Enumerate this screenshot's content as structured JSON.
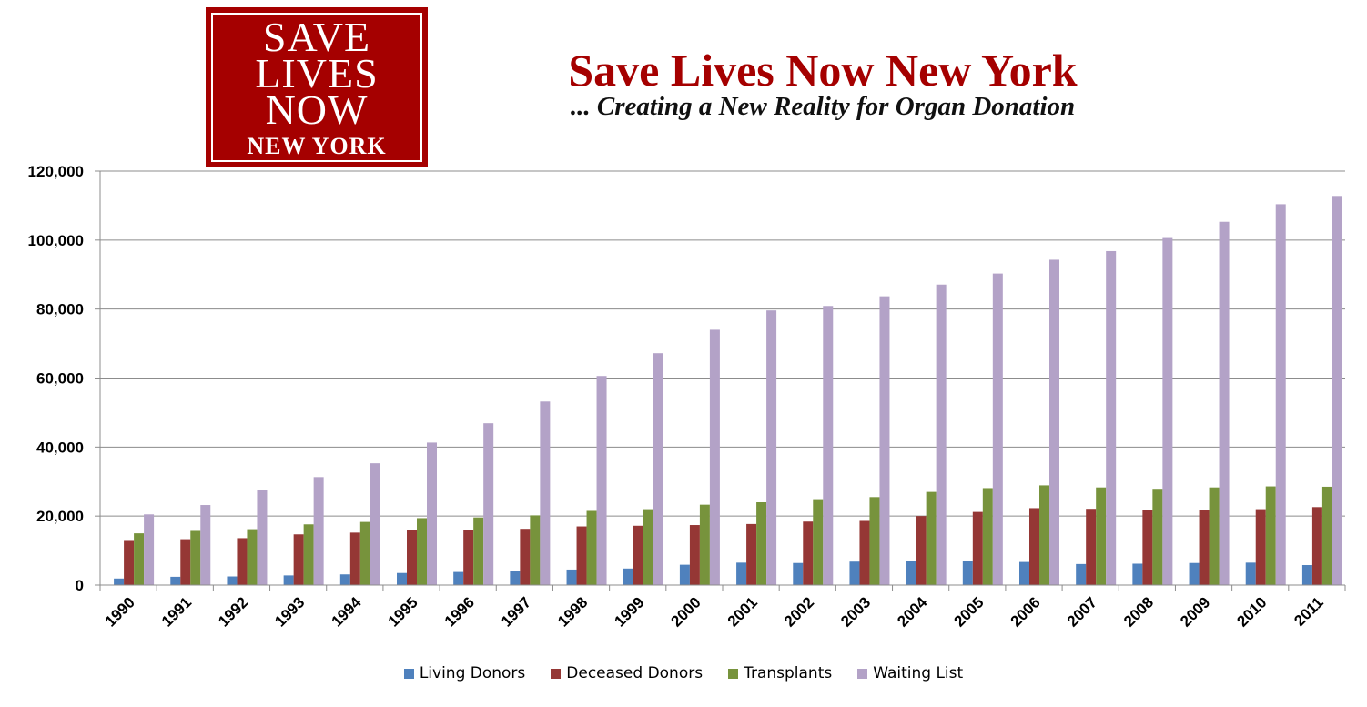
{
  "logo": {
    "lines": [
      "SAVE",
      "LIVES",
      "NOW",
      "NEW YORK"
    ],
    "bg_color": "#a50000"
  },
  "header": {
    "title": "Save Lives Now New York",
    "subtitle": "... Creating a New Reality for Organ Donation"
  },
  "chart_data": {
    "type": "bar",
    "categories": [
      "1990",
      "1991",
      "1992",
      "1993",
      "1994",
      "1995",
      "1996",
      "1997",
      "1998",
      "1999",
      "2000",
      "2001",
      "2002",
      "2003",
      "2004",
      "2005",
      "2006",
      "2007",
      "2008",
      "2009",
      "2010",
      "2011"
    ],
    "series": [
      {
        "name": "Living Donors",
        "color": "#4f81bd",
        "values": [
          1900,
          2400,
          2500,
          2800,
          3100,
          3500,
          3800,
          4100,
          4500,
          4800,
          5900,
          6500,
          6400,
          6800,
          7000,
          6900,
          6700,
          6100,
          6200,
          6400,
          6500,
          5800
        ]
      },
      {
        "name": "Deceased Donors",
        "color": "#953735",
        "values": [
          12800,
          13300,
          13600,
          14700,
          15200,
          15900,
          15900,
          16300,
          17000,
          17200,
          17400,
          17700,
          18400,
          18600,
          20000,
          21200,
          22300,
          22100,
          21700,
          21800,
          22000,
          22600
        ]
      },
      {
        "name": "Transplants",
        "color": "#77933c",
        "values": [
          15000,
          15700,
          16200,
          17600,
          18300,
          19400,
          19600,
          20200,
          21500,
          22000,
          23300,
          24000,
          24900,
          25500,
          27000,
          28100,
          28900,
          28300,
          27900,
          28300,
          28600,
          28500
        ]
      },
      {
        "name": "Waiting List",
        "color": "#b3a2c7",
        "values": [
          20500,
          23200,
          27600,
          31300,
          35300,
          41300,
          46900,
          53200,
          60600,
          67200,
          74000,
          79600,
          80900,
          83700,
          87100,
          90300,
          94300,
          96800,
          100600,
          105300,
          110400,
          112800
        ]
      }
    ],
    "yticks": [
      "0",
      "20,000",
      "40,000",
      "60,000",
      "80,000",
      "100,000",
      "120,000"
    ],
    "ylim": [
      0,
      120000
    ],
    "grid": true,
    "legend_position": "bottom"
  }
}
